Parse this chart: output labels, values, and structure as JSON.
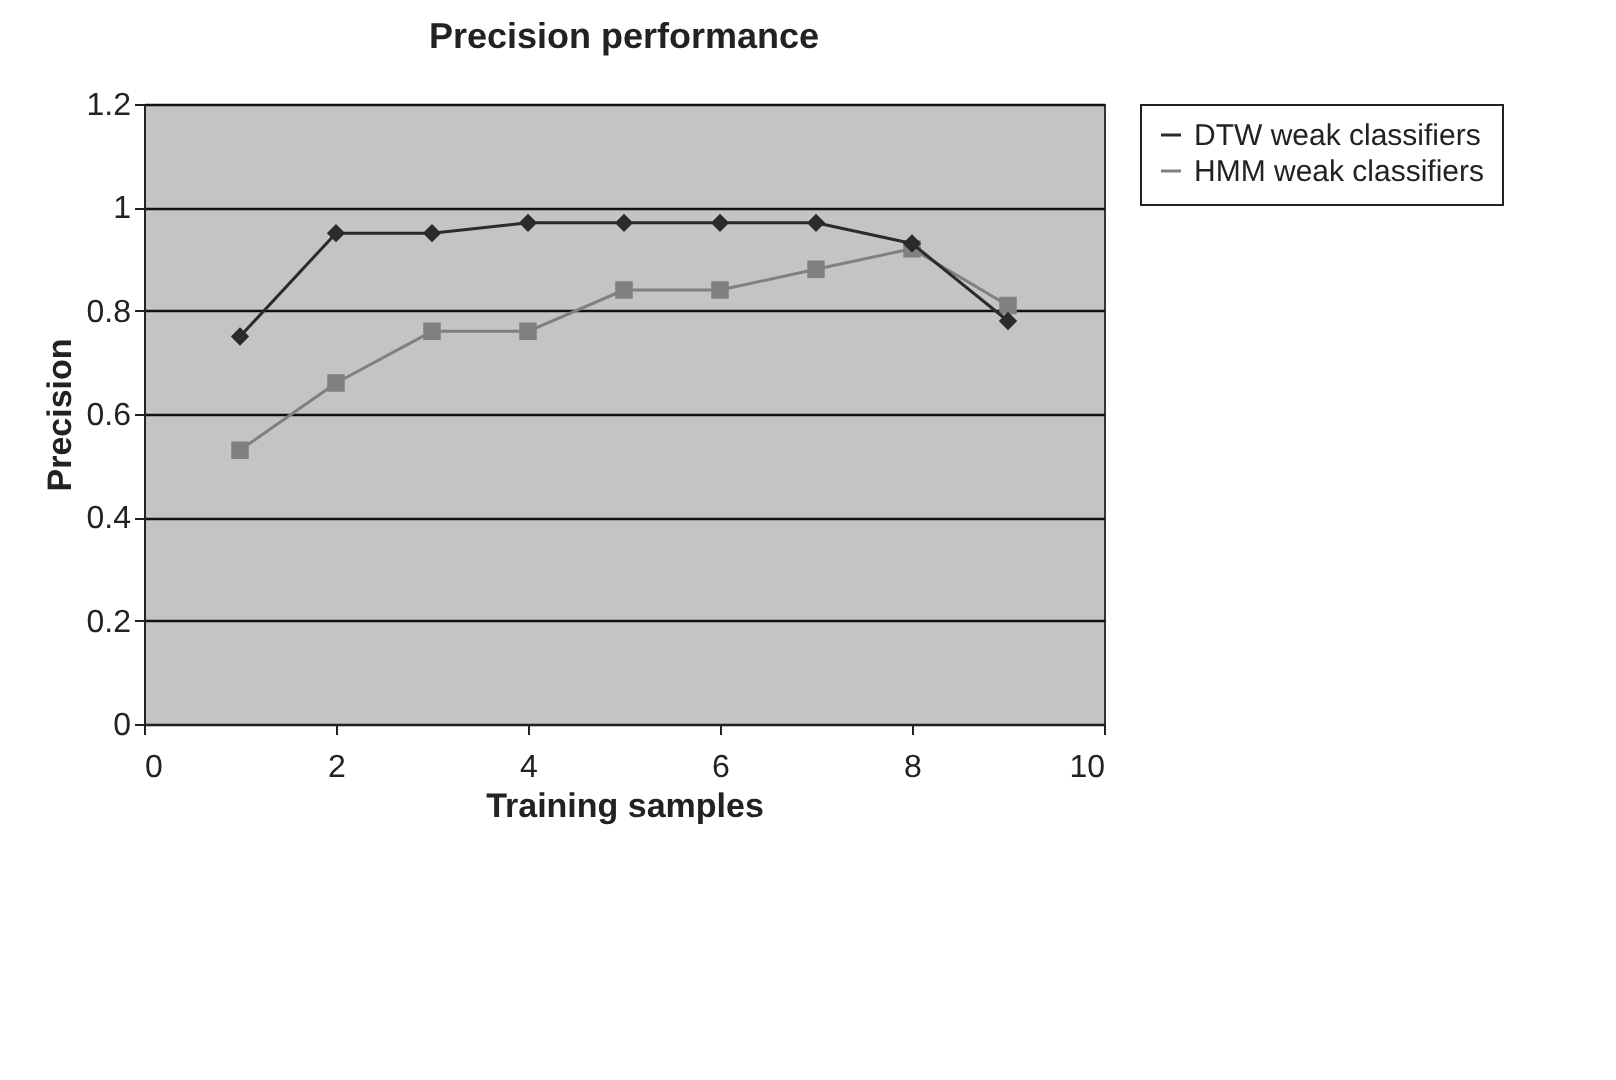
{
  "chart_data": {
    "type": "line",
    "title": "Precision performance",
    "xlabel": "Training samples",
    "ylabel": "Precision",
    "x": [
      1,
      2,
      3,
      4,
      5,
      6,
      7,
      8,
      9
    ],
    "series": [
      {
        "name": "DTW weak classifiers",
        "color": "#2b2b2b",
        "marker": "diamond",
        "values": [
          0.75,
          0.95,
          0.95,
          0.97,
          0.97,
          0.97,
          0.97,
          0.93,
          0.78
        ]
      },
      {
        "name": "HMM weak classifiers",
        "color": "#808080",
        "marker": "square",
        "values": [
          0.53,
          0.66,
          0.76,
          0.76,
          0.84,
          0.84,
          0.88,
          0.92,
          0.81
        ]
      }
    ],
    "xlim": [
      0,
      10
    ],
    "xticks": [
      0,
      2,
      4,
      6,
      8,
      10
    ],
    "ylim": [
      0,
      1.2
    ],
    "yticks": [
      0,
      0.2,
      0.4,
      0.6,
      0.8,
      1,
      1.2
    ],
    "grid": "y",
    "legend": "right",
    "line_style": "solid"
  }
}
